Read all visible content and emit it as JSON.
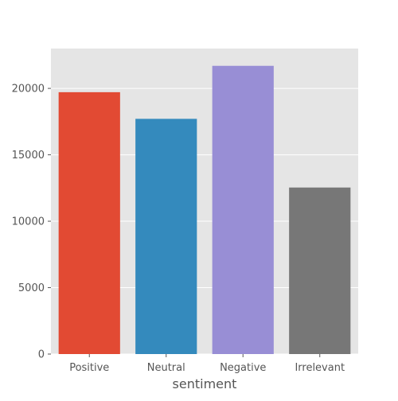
{
  "chart_data": {
    "type": "bar",
    "title": "",
    "xlabel": "sentiment",
    "ylabel": "",
    "categories": [
      "Positive",
      "Neutral",
      "Negative",
      "Irrelevant"
    ],
    "values": [
      19713,
      17708,
      21698,
      12537
    ],
    "colors": [
      "#E24A33",
      "#348ABD",
      "#988ED5",
      "#777777"
    ],
    "ylim": [
      0,
      23000
    ],
    "yticks": [
      0,
      5000,
      10000,
      15000,
      20000
    ],
    "ytick_labels": [
      "0",
      "5000",
      "10000",
      "15000",
      "20000"
    ],
    "grid": true,
    "background": "#E5E5E5",
    "style": "ggplot"
  }
}
